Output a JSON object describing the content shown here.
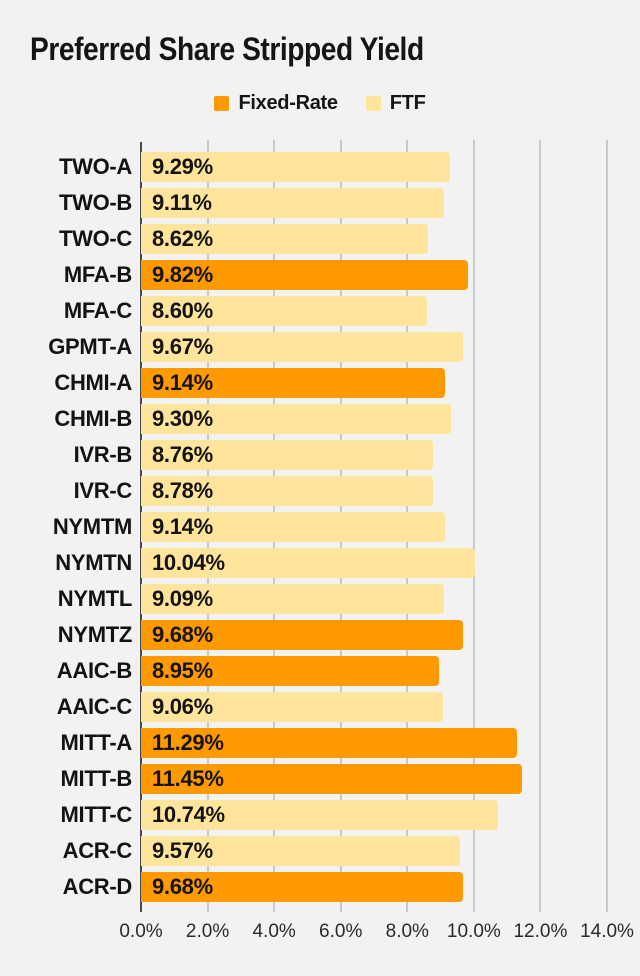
{
  "title": "Preferred Share Stripped Yield",
  "legend": {
    "items": [
      {
        "label": "Fixed-Rate",
        "color": "#FF9900"
      },
      {
        "label": "FTF",
        "color": "#FFE49B"
      }
    ]
  },
  "colors": {
    "background": "#F2F2F2",
    "fixed_rate": "#FF9900",
    "ftf": "#FFE49B",
    "gridline": "#C9C9C9",
    "axis": "#4A4A4A",
    "text": "#131313",
    "tick_label": "#2A2A2A"
  },
  "chart_data": {
    "type": "bar",
    "orientation": "horizontal",
    "title": "Preferred Share Stripped Yield",
    "legend_position": "top",
    "legend_entries": [
      "Fixed-Rate",
      "FTF"
    ],
    "grid": true,
    "xlim": [
      0,
      14
    ],
    "x_tick_labels": [
      "0.0%",
      "2.0%",
      "4.0%",
      "6.0%",
      "8.0%",
      "10.0%",
      "12.0%",
      "14.0%"
    ],
    "categories": [
      "TWO-A",
      "TWO-B",
      "TWO-C",
      "MFA-B",
      "MFA-C",
      "GPMT-A",
      "CHMI-A",
      "CHMI-B",
      "IVR-B",
      "IVR-C",
      "NYMTM",
      "NYMTN",
      "NYMTL",
      "NYMTZ",
      "AAIC-B",
      "AAIC-C",
      "MITT-A",
      "MITT-B",
      "MITT-C",
      "ACR-C",
      "ACR-D"
    ],
    "bars": [
      {
        "category": "TWO-A",
        "value": 9.29,
        "label": "9.29%",
        "series": "FTF"
      },
      {
        "category": "TWO-B",
        "value": 9.11,
        "label": "9.11%",
        "series": "FTF"
      },
      {
        "category": "TWO-C",
        "value": 8.62,
        "label": "8.62%",
        "series": "FTF"
      },
      {
        "category": "MFA-B",
        "value": 9.82,
        "label": "9.82%",
        "series": "Fixed-Rate"
      },
      {
        "category": "MFA-C",
        "value": 8.6,
        "label": "8.60%",
        "series": "FTF"
      },
      {
        "category": "GPMT-A",
        "value": 9.67,
        "label": "9.67%",
        "series": "FTF"
      },
      {
        "category": "CHMI-A",
        "value": 9.14,
        "label": "9.14%",
        "series": "Fixed-Rate"
      },
      {
        "category": "CHMI-B",
        "value": 9.3,
        "label": "9.30%",
        "series": "FTF"
      },
      {
        "category": "IVR-B",
        "value": 8.76,
        "label": "8.76%",
        "series": "FTF"
      },
      {
        "category": "IVR-C",
        "value": 8.78,
        "label": "8.78%",
        "series": "FTF"
      },
      {
        "category": "NYMTM",
        "value": 9.14,
        "label": "9.14%",
        "series": "FTF"
      },
      {
        "category": "NYMTN",
        "value": 10.04,
        "label": "10.04%",
        "series": "FTF"
      },
      {
        "category": "NYMTL",
        "value": 9.09,
        "label": "9.09%",
        "series": "FTF"
      },
      {
        "category": "NYMTZ",
        "value": 9.68,
        "label": "9.68%",
        "series": "Fixed-Rate"
      },
      {
        "category": "AAIC-B",
        "value": 8.95,
        "label": "8.95%",
        "series": "Fixed-Rate"
      },
      {
        "category": "AAIC-C",
        "value": 9.06,
        "label": "9.06%",
        "series": "FTF"
      },
      {
        "category": "MITT-A",
        "value": 11.29,
        "label": "11.29%",
        "series": "Fixed-Rate"
      },
      {
        "category": "MITT-B",
        "value": 11.45,
        "label": "11.45%",
        "series": "Fixed-Rate"
      },
      {
        "category": "MITT-C",
        "value": 10.74,
        "label": "10.74%",
        "series": "FTF"
      },
      {
        "category": "ACR-C",
        "value": 9.57,
        "label": "9.57%",
        "series": "FTF"
      },
      {
        "category": "ACR-D",
        "value": 9.68,
        "label": "9.68%",
        "series": "Fixed-Rate"
      }
    ]
  }
}
